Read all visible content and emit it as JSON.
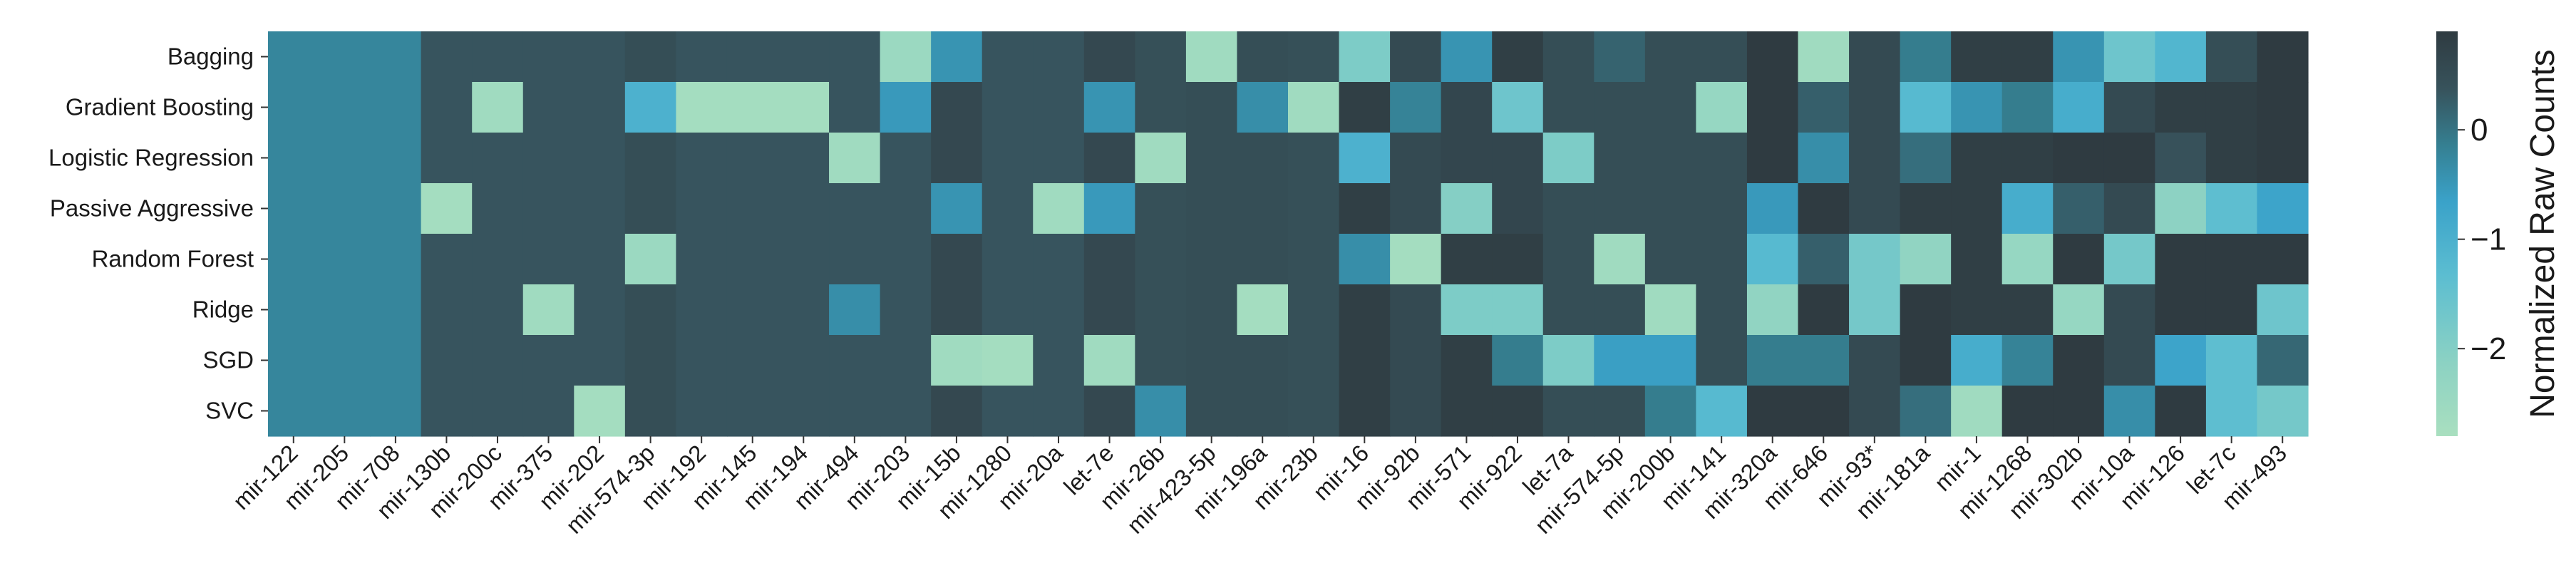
{
  "chart_data": {
    "type": "heatmap",
    "rows": [
      "Bagging",
      "Gradient Boosting",
      "Logistic Regression",
      "Passive Aggressive",
      "Random Forest",
      "Ridge",
      "SGD",
      "SVC"
    ],
    "columns": [
      "mir-122",
      "mir-205",
      "mir-708",
      "mir-130b",
      "mir-200c",
      "mir-375",
      "mir-202",
      "mir-574-3p",
      "mir-192",
      "mir-145",
      "mir-194",
      "mir-494",
      "mir-203",
      "mir-15b",
      "mir-1280",
      "mir-20a",
      "let-7e",
      "mir-26b",
      "mir-423-5p",
      "mir-196a",
      "mir-23b",
      "mir-16",
      "mir-92b",
      "mir-571",
      "mir-922",
      "let-7a",
      "mir-574-5p",
      "mir-200b",
      "mir-141",
      "mir-320a",
      "mir-646",
      "mir-93*",
      "mir-181a",
      "mir-1",
      "mir-1268",
      "mir-302b",
      "mir-10a",
      "mir-126",
      "let-7c",
      "mir-493"
    ],
    "values": [
      [
        -0.45,
        -0.45,
        -0.45,
        0.25,
        0.25,
        0.25,
        0.25,
        0.4,
        0.25,
        0.25,
        0.25,
        0.25,
        -2.5,
        -0.7,
        0.25,
        0.25,
        0.55,
        0.35,
        -2.6,
        0.4,
        0.35,
        -2.0,
        0.5,
        -0.7,
        0.8,
        0.4,
        0.05,
        0.4,
        0.4,
        0.9,
        -2.6,
        0.5,
        -0.3,
        0.8,
        0.8,
        -0.7,
        -1.8,
        -1.4,
        0.4,
        0.9
      ],
      [
        -0.45,
        -0.45,
        -0.45,
        0.25,
        -2.6,
        0.25,
        0.25,
        -1.3,
        -2.7,
        -2.7,
        -2.7,
        0.25,
        -0.8,
        0.55,
        0.25,
        0.25,
        -0.7,
        0.35,
        0.4,
        -0.6,
        -2.6,
        0.8,
        -0.4,
        0.6,
        -1.8,
        0.4,
        0.4,
        0.4,
        -2.4,
        0.9,
        0.1,
        0.5,
        -1.5,
        -0.7,
        -0.3,
        -1.2,
        0.5,
        0.8,
        0.8,
        0.9
      ],
      [
        -0.45,
        -0.45,
        -0.45,
        0.25,
        0.25,
        0.25,
        0.25,
        0.4,
        0.25,
        0.25,
        0.25,
        -2.6,
        0.25,
        0.55,
        0.25,
        0.25,
        0.55,
        -2.6,
        0.4,
        0.4,
        0.35,
        -1.3,
        0.5,
        0.6,
        0.6,
        -2.0,
        0.4,
        0.4,
        0.4,
        0.9,
        -0.6,
        0.5,
        -0.1,
        0.8,
        0.8,
        0.9,
        0.9,
        0.3,
        0.8,
        0.9
      ],
      [
        -0.45,
        -0.45,
        -0.45,
        -2.7,
        0.25,
        0.25,
        0.25,
        0.4,
        0.25,
        0.25,
        0.25,
        0.25,
        0.25,
        -0.7,
        0.25,
        -2.6,
        -0.8,
        0.35,
        0.4,
        0.4,
        0.35,
        0.8,
        0.5,
        -2.1,
        0.6,
        0.4,
        0.4,
        0.4,
        0.4,
        -0.8,
        0.9,
        0.5,
        0.8,
        0.8,
        -1.2,
        0.1,
        0.5,
        -2.2,
        -1.6,
        -1.0
      ],
      [
        -0.45,
        -0.45,
        -0.45,
        0.25,
        0.25,
        0.25,
        0.25,
        -2.5,
        0.25,
        0.25,
        0.25,
        0.25,
        0.25,
        0.55,
        0.25,
        0.25,
        0.55,
        0.35,
        0.4,
        0.4,
        0.35,
        -0.6,
        -2.7,
        0.8,
        0.8,
        0.4,
        -2.6,
        0.4,
        0.4,
        -1.5,
        0.1,
        -1.9,
        -2.3,
        0.8,
        -2.4,
        0.9,
        -1.9,
        0.9,
        0.9,
        0.9
      ],
      [
        -0.45,
        -0.45,
        -0.45,
        0.25,
        0.25,
        -2.6,
        0.25,
        0.4,
        0.25,
        0.25,
        0.25,
        -0.6,
        0.25,
        0.55,
        0.25,
        0.25,
        0.55,
        0.35,
        0.4,
        -2.7,
        0.35,
        0.8,
        0.5,
        -2.0,
        -2.0,
        0.4,
        0.4,
        -2.6,
        0.4,
        -2.3,
        0.9,
        -1.9,
        0.9,
        0.8,
        0.8,
        -2.4,
        0.5,
        0.9,
        0.9,
        -1.8
      ],
      [
        -0.45,
        -0.45,
        -0.45,
        0.25,
        0.25,
        0.25,
        0.25,
        0.4,
        0.25,
        0.25,
        0.25,
        0.25,
        0.25,
        -2.6,
        -2.7,
        0.25,
        -2.6,
        0.35,
        0.4,
        0.4,
        0.35,
        0.8,
        0.5,
        0.8,
        -0.3,
        -2.0,
        -0.9,
        -0.9,
        0.4,
        -0.3,
        -0.3,
        0.5,
        0.9,
        -1.2,
        -0.4,
        0.9,
        0.5,
        -1.0,
        -1.6,
        0.0
      ],
      [
        -0.45,
        -0.45,
        -0.45,
        0.25,
        0.25,
        0.25,
        -2.7,
        0.4,
        0.25,
        0.25,
        0.25,
        0.25,
        0.25,
        0.55,
        0.25,
        0.25,
        0.55,
        -0.6,
        0.4,
        0.4,
        0.35,
        0.8,
        0.5,
        0.8,
        0.8,
        0.4,
        0.4,
        -0.3,
        -1.5,
        0.9,
        0.9,
        0.5,
        -0.1,
        -2.6,
        0.9,
        0.9,
        -0.6,
        0.9,
        -1.6,
        -1.9
      ]
    ],
    "colormap": [
      "#a9dfbf",
      "#8cd2c3",
      "#5bbdd1",
      "#3aa2c9",
      "#357f91",
      "#37525b",
      "#2f3b41"
    ],
    "vmin": -2.8,
    "vmax": 0.9,
    "colorbar": {
      "label": "Normalized Raw Counts",
      "ticks": [
        0,
        -1,
        -2
      ],
      "tick_labels": [
        "0",
        "−1",
        "−2"
      ]
    },
    "grid": false
  }
}
